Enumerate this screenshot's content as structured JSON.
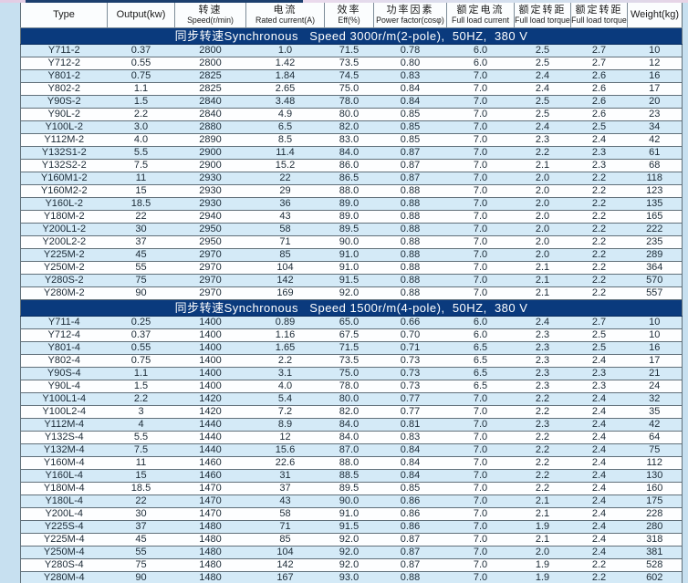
{
  "colors": {
    "page_bg": "#c7e0f0",
    "band_bg": "#0a3a7d",
    "row_alt": "#d4eaf7",
    "row_base": "#fdfeff",
    "grid_line": "#61707a",
    "header_bg": "#fbfdfe",
    "header_sep": "#7d8d99",
    "text": "#1b2a36"
  },
  "table": {
    "columns": [
      {
        "zh": "",
        "en": "Type"
      },
      {
        "zh": "",
        "en": "Output(kw)"
      },
      {
        "zh": "转速",
        "en": "Speed(r/min)"
      },
      {
        "zh": "电流",
        "en": "Rated current(A)"
      },
      {
        "zh": "效率",
        "en": "Eff(%)"
      },
      {
        "zh": "功率因素",
        "en": "Power factor(cosφ)"
      },
      {
        "zh": "额定电流",
        "en": "Full load current"
      },
      {
        "zh": "额定转距",
        "en": "Full load torque"
      },
      {
        "zh": "额定转距",
        "en": "Full load torque"
      },
      {
        "zh": "",
        "en": "Weight(kg)"
      }
    ],
    "sections": [
      {
        "title": "同步转速Synchronous   Speed 3000r/m(2-pole),  50HZ,  380 V",
        "rows": [
          [
            "Y711-2",
            "0.37",
            "2800",
            "1.0",
            "71.5",
            "0.78",
            "6.0",
            "2.5",
            "2.7",
            "10"
          ],
          [
            "Y712-2",
            "0.55",
            "2800",
            "1.42",
            "73.5",
            "0.80",
            "6.0",
            "2.5",
            "2.7",
            "12"
          ],
          [
            "Y801-2",
            "0.75",
            "2825",
            "1.84",
            "74.5",
            "0.83",
            "7.0",
            "2.4",
            "2.6",
            "16"
          ],
          [
            "Y802-2",
            "1.1",
            "2825",
            "2.65",
            "75.0",
            "0.84",
            "7.0",
            "2.4",
            "2.6",
            "17"
          ],
          [
            "Y90S-2",
            "1.5",
            "2840",
            "3.48",
            "78.0",
            "0.84",
            "7.0",
            "2.5",
            "2.6",
            "20"
          ],
          [
            "Y90L-2",
            "2.2",
            "2840",
            "4.9",
            "80.0",
            "0.85",
            "7.0",
            "2.5",
            "2.6",
            "23"
          ],
          [
            "Y100L-2",
            "3.0",
            "2880",
            "6.5",
            "82.0",
            "0.85",
            "7.0",
            "2.4",
            "2.5",
            "34"
          ],
          [
            "Y112M-2",
            "4.0",
            "2890",
            "8.5",
            "83.0",
            "0.85",
            "7.0",
            "2.3",
            "2.4",
            "42"
          ],
          [
            "Y132S1-2",
            "5.5",
            "2900",
            "11.4",
            "84.0",
            "0.87",
            "7.0",
            "2.2",
            "2.3",
            "61"
          ],
          [
            "Y132S2-2",
            "7.5",
            "2900",
            "15.2",
            "86.0",
            "0.87",
            "7.0",
            "2.1",
            "2.3",
            "68"
          ],
          [
            "Y160M1-2",
            "11",
            "2930",
            "22",
            "86.5",
            "0.87",
            "7.0",
            "2.0",
            "2.2",
            "118"
          ],
          [
            "Y160M2-2",
            "15",
            "2930",
            "29",
            "88.0",
            "0.88",
            "7.0",
            "2.0",
            "2.2",
            "123"
          ],
          [
            "Y160L-2",
            "18.5",
            "2930",
            "36",
            "89.0",
            "0.88",
            "7.0",
            "2.0",
            "2.2",
            "135"
          ],
          [
            "Y180M-2",
            "22",
            "2940",
            "43",
            "89.0",
            "0.88",
            "7.0",
            "2.0",
            "2.2",
            "165"
          ],
          [
            "Y200L1-2",
            "30",
            "2950",
            "58",
            "89.5",
            "0.88",
            "7.0",
            "2.0",
            "2.2",
            "222"
          ],
          [
            "Y200L2-2",
            "37",
            "2950",
            "71",
            "90.0",
            "0.88",
            "7.0",
            "2.0",
            "2.2",
            "235"
          ],
          [
            "Y225M-2",
            "45",
            "2970",
            "85",
            "91.0",
            "0.88",
            "7.0",
            "2.0",
            "2.2",
            "289"
          ],
          [
            "Y250M-2",
            "55",
            "2970",
            "104",
            "91.0",
            "0.88",
            "7.0",
            "2.1",
            "2.2",
            "364"
          ],
          [
            "Y280S-2",
            "75",
            "2970",
            "142",
            "91.5",
            "0.88",
            "7.0",
            "2.1",
            "2.2",
            "570"
          ],
          [
            "Y280M-2",
            "90",
            "2970",
            "169",
            "92.0",
            "0.88",
            "7.0",
            "2.1",
            "2.2",
            "557"
          ]
        ]
      },
      {
        "title": "同步转速Synchronous   Speed 1500r/m(4-pole),  50HZ,  380 V",
        "rows": [
          [
            "Y711-4",
            "0.25",
            "1400",
            "0.89",
            "65.0",
            "0.66",
            "6.0",
            "2.4",
            "2.7",
            "10"
          ],
          [
            "Y712-4",
            "0.37",
            "1400",
            "1.16",
            "67.5",
            "0.70",
            "6.0",
            "2.3",
            "2.5",
            "10"
          ],
          [
            "Y801-4",
            "0.55",
            "1400",
            "1.65",
            "71.5",
            "0.71",
            "6.5",
            "2.3",
            "2.5",
            "16"
          ],
          [
            "Y802-4",
            "0.75",
            "1400",
            "2.2",
            "73.5",
            "0.73",
            "6.5",
            "2.3",
            "2.4",
            "17"
          ],
          [
            "Y90S-4",
            "1.1",
            "1400",
            "3.1",
            "75.0",
            "0.73",
            "6.5",
            "2.3",
            "2.3",
            "21"
          ],
          [
            "Y90L-4",
            "1.5",
            "1400",
            "4.0",
            "78.0",
            "0.73",
            "6.5",
            "2.3",
            "2.3",
            "24"
          ],
          [
            "Y100L1-4",
            "2.2",
            "1420",
            "5.4",
            "80.0",
            "0.77",
            "7.0",
            "2.2",
            "2.4",
            "32"
          ],
          [
            "Y100L2-4",
            "3",
            "1420",
            "7.2",
            "82.0",
            "0.77",
            "7.0",
            "2.2",
            "2.4",
            "35"
          ],
          [
            "Y112M-4",
            "4",
            "1440",
            "8.9",
            "84.0",
            "0.81",
            "7.0",
            "2.3",
            "2.4",
            "42"
          ],
          [
            "Y132S-4",
            "5.5",
            "1440",
            "12",
            "84.0",
            "0.83",
            "7.0",
            "2.2",
            "2.4",
            "64"
          ],
          [
            "Y132M-4",
            "7.5",
            "1440",
            "15.6",
            "87.0",
            "0.84",
            "7.0",
            "2.2",
            "2.4",
            "75"
          ],
          [
            "Y160M-4",
            "11",
            "1460",
            "22.6",
            "88.0",
            "0.84",
            "7.0",
            "2.2",
            "2.4",
            "112"
          ],
          [
            "Y160L-4",
            "15",
            "1460",
            "31",
            "88.5",
            "0.84",
            "7.0",
            "2.2",
            "2.4",
            "130"
          ],
          [
            "Y180M-4",
            "18.5",
            "1470",
            "37",
            "89.5",
            "0.85",
            "7.0",
            "2.2",
            "2.4",
            "160"
          ],
          [
            "Y180L-4",
            "22",
            "1470",
            "43",
            "90.0",
            "0.86",
            "7.0",
            "2.1",
            "2.4",
            "175"
          ],
          [
            "Y200L-4",
            "30",
            "1470",
            "58",
            "91.0",
            "0.86",
            "7.0",
            "2.1",
            "2.4",
            "228"
          ],
          [
            "Y225S-4",
            "37",
            "1480",
            "71",
            "91.5",
            "0.86",
            "7.0",
            "1.9",
            "2.4",
            "280"
          ],
          [
            "Y225M-4",
            "45",
            "1480",
            "85",
            "92.0",
            "0.87",
            "7.0",
            "2.1",
            "2.4",
            "318"
          ],
          [
            "Y250M-4",
            "55",
            "1480",
            "104",
            "92.0",
            "0.87",
            "7.0",
            "2.0",
            "2.4",
            "381"
          ],
          [
            "Y280S-4",
            "75",
            "1480",
            "142",
            "92.0",
            "0.87",
            "7.0",
            "1.9",
            "2.2",
            "528"
          ],
          [
            "Y280M-4",
            "90",
            "1480",
            "167",
            "93.0",
            "0.88",
            "7.0",
            "1.9",
            "2.2",
            "602"
          ]
        ]
      }
    ]
  }
}
